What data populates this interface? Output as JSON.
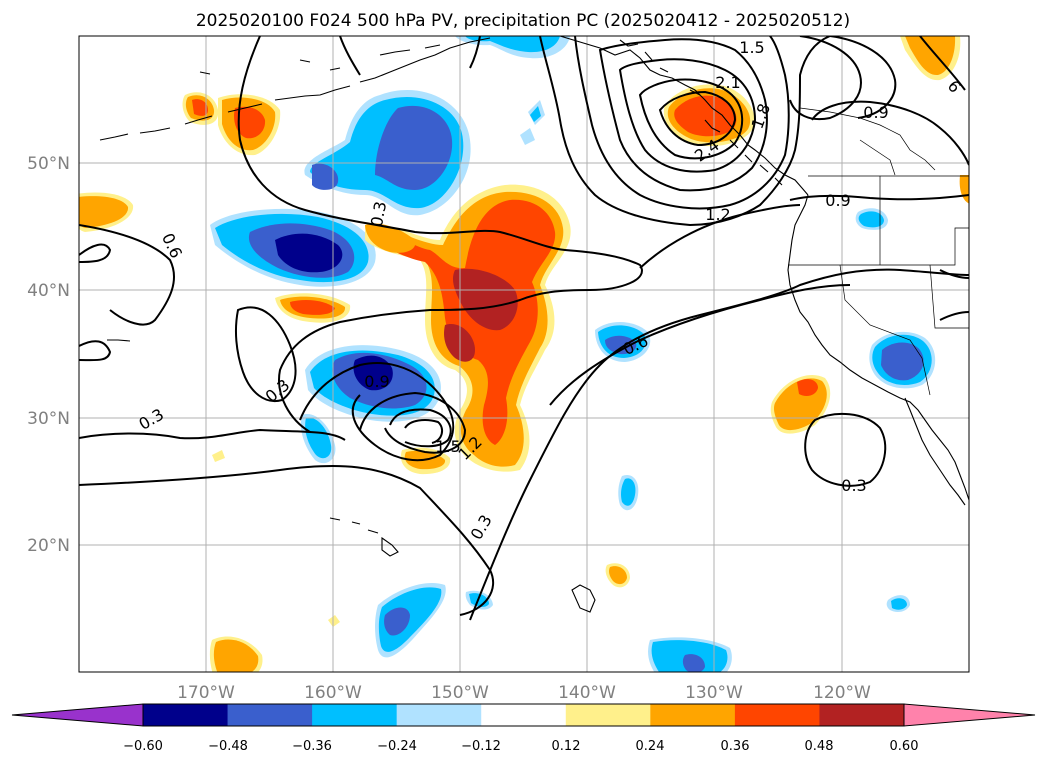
{
  "title": "2025020100 F024 500 hPa PV, precipitation PC (2025020412 - 2025020512)",
  "map": {
    "lon_ticks": [
      "170°W",
      "160°W",
      "150°W",
      "140°W",
      "130°W",
      "120°W"
    ],
    "lat_ticks": [
      "50°N",
      "40°N",
      "30°N",
      "20°N"
    ],
    "contour_labels": [
      "1.5",
      "2.1",
      "1.8",
      "0.9",
      "2.4",
      "1.2",
      "0.9",
      "0.3",
      "0.6",
      "0.6",
      "0.3",
      "0.9",
      "0.3",
      "1.5",
      "1.2",
      "0.3",
      "0.3",
      "6"
    ]
  },
  "colorbar": {
    "ticks": [
      "−0.60",
      "−0.48",
      "−0.36",
      "−0.24",
      "−0.12",
      "0.12",
      "0.24",
      "0.36",
      "0.48",
      "0.60"
    ],
    "colors": [
      "#9932cc",
      "#00008b",
      "#3a5fcd",
      "#00bfff",
      "#b0e2ff",
      "#ffffff",
      "#fff08b",
      "#ffa500",
      "#ff4500",
      "#b22222",
      "#ff82ab"
    ]
  }
}
